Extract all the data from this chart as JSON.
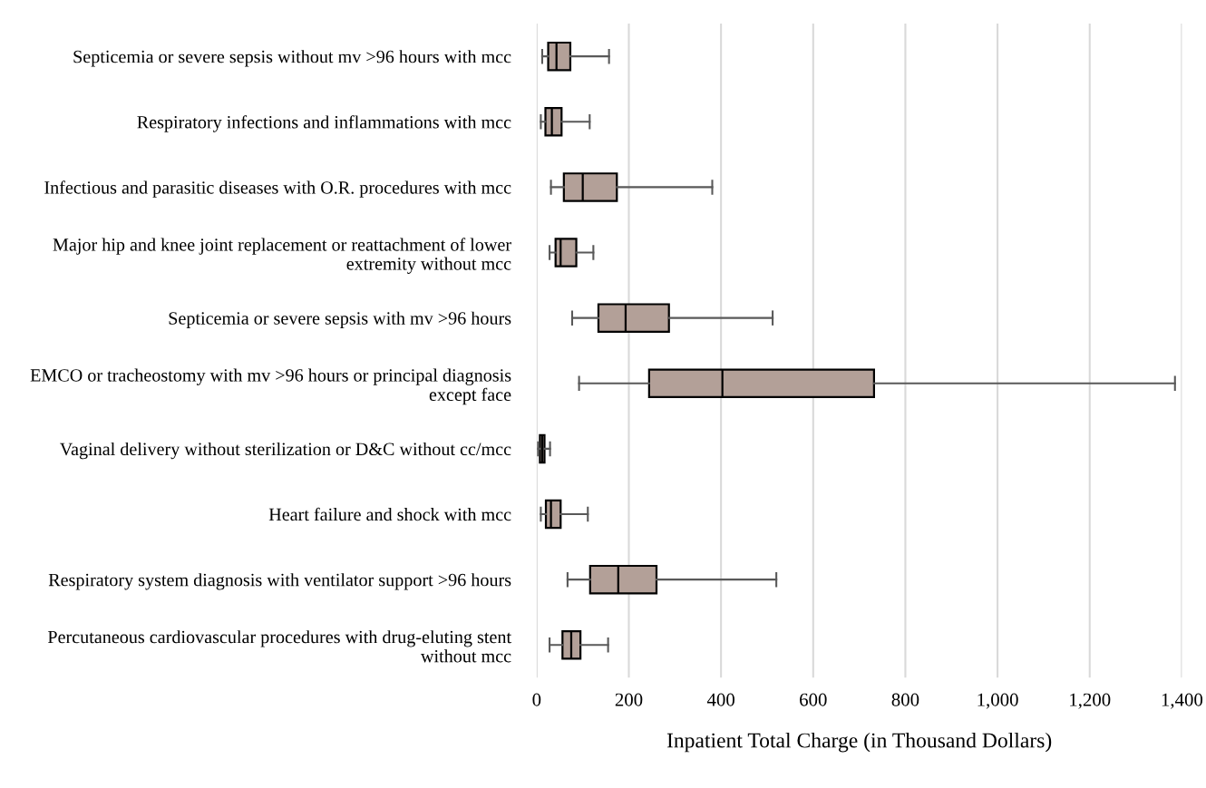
{
  "chart_data": {
    "type": "box",
    "orientation": "horizontal",
    "categories": [
      "Septicemia or severe sepsis without mv >96 hours with mcc",
      "Respiratory infections and inflammations with mcc",
      "Infectious and parasitic diseases with O.R. procedures with mcc",
      "Major hip and knee joint replacement or reattachment of lower extremity without mcc",
      "Septicemia or severe sepsis with mv >96 hours",
      "EMCO or tracheostomy with mv >96 hours or principal diagnosis except face",
      "Vaginal delivery without sterilization or D&C without cc/mcc",
      "Heart failure and shock with mcc",
      "Respiratory system diagnosis with ventilator support >96 hours",
      "Percutaneous cardiovascular procedures with drug-eluting stent without mcc"
    ],
    "boxes": [
      {
        "low": 12,
        "q1": 25,
        "median": 43,
        "q3": 73,
        "high": 157
      },
      {
        "low": 9,
        "q1": 19,
        "median": 33,
        "q3": 54,
        "high": 115
      },
      {
        "low": 31,
        "q1": 59,
        "median": 100,
        "q3": 174,
        "high": 381
      },
      {
        "low": 28,
        "q1": 41,
        "median": 52,
        "q3": 86,
        "high": 123
      },
      {
        "low": 77,
        "q1": 134,
        "median": 193,
        "q3": 287,
        "high": 512
      },
      {
        "low": 92,
        "q1": 244,
        "median": 403,
        "q3": 732,
        "high": 1385
      },
      {
        "low": 3,
        "q1": 7,
        "median": 12,
        "q3": 17,
        "high": 29
      },
      {
        "low": 9,
        "q1": 20,
        "median": 31,
        "q3": 52,
        "high": 111
      },
      {
        "low": 67,
        "q1": 116,
        "median": 177,
        "q3": 260,
        "high": 520
      },
      {
        "low": 28,
        "q1": 56,
        "median": 75,
        "q3": 95,
        "high": 155
      }
    ],
    "color": "#b3a098",
    "xlabel": "Inpatient Total Charge (in Thousand Dollars)",
    "xlim": [
      0,
      1400
    ],
    "xticks": [
      0,
      200,
      400,
      600,
      800,
      {
        "value": 1000,
        "label": "1,000"
      },
      {
        "value": 1200,
        "label": "1,200"
      },
      {
        "value": 1400,
        "label": "1,400"
      }
    ],
    "grid": "x",
    "legend": false
  }
}
